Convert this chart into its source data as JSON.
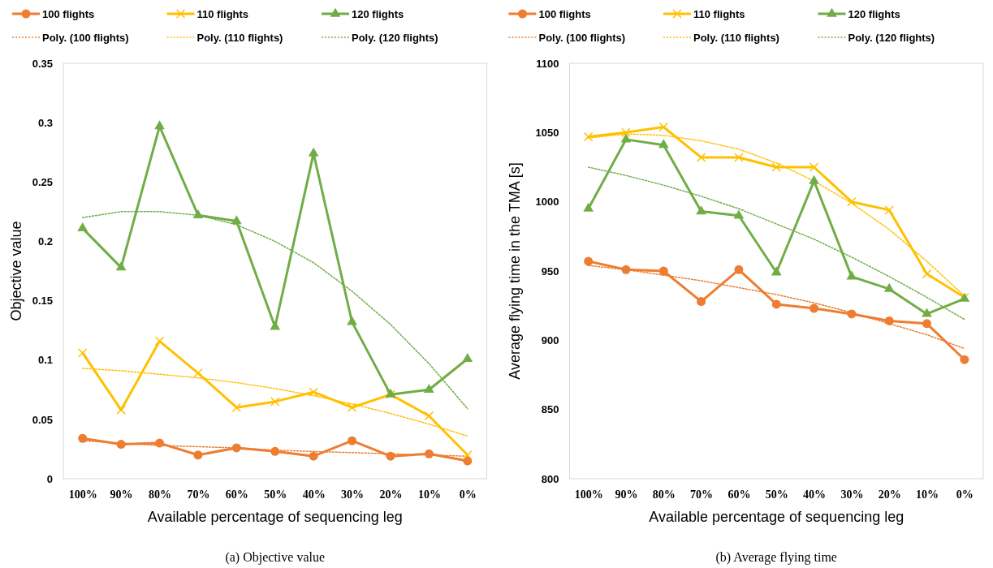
{
  "chart_data": [
    {
      "type": "line",
      "xlabel": "Available percentage of sequencing leg",
      "ylabel": "Objective value",
      "categories": [
        "100%",
        "90%",
        "80%",
        "70%",
        "60%",
        "50%",
        "40%",
        "30%",
        "20%",
        "10%",
        "0%"
      ],
      "ylim": [
        0,
        0.35
      ],
      "yticks": [
        0,
        0.05,
        0.1,
        0.15,
        0.2,
        0.25,
        0.3,
        0.35
      ],
      "legend": "top",
      "grid": false,
      "annotations": [
        "(a) Objective value"
      ],
      "series": [
        {
          "name": "100 flights",
          "color": "#ed7d31",
          "marker": "circle",
          "line_style": "solid",
          "values": [
            0.034,
            0.029,
            0.03,
            0.02,
            0.026,
            0.023,
            0.019,
            0.032,
            0.019,
            0.021,
            0.015
          ]
        },
        {
          "name": "110 flights",
          "color": "#ffc000",
          "marker": "cross",
          "line_style": "solid",
          "values": [
            0.106,
            0.058,
            0.116,
            0.089,
            0.06,
            0.065,
            0.073,
            0.06,
            0.071,
            0.053,
            0.02
          ]
        },
        {
          "name": "120 flights",
          "color": "#70ad47",
          "marker": "triangle",
          "line_style": "solid",
          "values": [
            0.211,
            0.178,
            0.297,
            0.222,
            0.217,
            0.128,
            0.274,
            0.132,
            0.071,
            0.075,
            0.101
          ]
        },
        {
          "name": "Poly.  (100 flights)",
          "color": "#ed7d31",
          "marker": "none",
          "line_style": "dotted",
          "values": [
            0.032,
            0.03,
            0.028,
            0.027,
            0.026,
            0.024,
            0.023,
            0.022,
            0.021,
            0.02,
            0.019
          ]
        },
        {
          "name": "Poly.  (110 flights)",
          "color": "#ffc000",
          "marker": "none",
          "line_style": "dotted",
          "values": [
            0.093,
            0.091,
            0.088,
            0.085,
            0.081,
            0.076,
            0.07,
            0.063,
            0.055,
            0.046,
            0.036
          ]
        },
        {
          "name": "Poly.  (120 flights)",
          "color": "#70ad47",
          "marker": "none",
          "line_style": "dotted",
          "values": [
            0.22,
            0.225,
            0.225,
            0.222,
            0.214,
            0.2,
            0.182,
            0.158,
            0.13,
            0.097,
            0.059
          ]
        }
      ]
    },
    {
      "type": "line",
      "xlabel": "Available percentage of sequencing leg",
      "ylabel": "Average flying time in the TMA [s]",
      "categories": [
        "100%",
        "90%",
        "80%",
        "70%",
        "60%",
        "50%",
        "40%",
        "30%",
        "20%",
        "10%",
        "0%"
      ],
      "ylim": [
        800,
        1100
      ],
      "yticks": [
        800,
        850,
        900,
        950,
        1000,
        1050,
        1100
      ],
      "legend": "top",
      "grid": false,
      "annotations": [
        "(b) Average flying time"
      ],
      "series": [
        {
          "name": "100 flights",
          "color": "#ed7d31",
          "marker": "circle",
          "line_style": "solid",
          "values": [
            957,
            951,
            950,
            928,
            951,
            926,
            923,
            919,
            914,
            912,
            886
          ]
        },
        {
          "name": "110 flights",
          "color": "#ffc000",
          "marker": "cross",
          "line_style": "solid",
          "values": [
            1047,
            1050,
            1054,
            1032,
            1032,
            1025,
            1025,
            1000,
            994,
            948,
            931
          ]
        },
        {
          "name": "120 flights",
          "color": "#70ad47",
          "marker": "triangle",
          "line_style": "solid",
          "values": [
            995,
            1045,
            1041,
            993,
            990,
            949,
            1015,
            946,
            937,
            919,
            930
          ]
        },
        {
          "name": "Poly.  (100 flights)",
          "color": "#ed7d31",
          "marker": "none",
          "line_style": "dotted",
          "values": [
            954,
            951,
            947,
            943,
            938,
            933,
            927,
            920,
            912,
            904,
            894
          ]
        },
        {
          "name": "Poly.  (110 flights)",
          "color": "#ffc000",
          "marker": "none",
          "line_style": "dotted",
          "values": [
            1046,
            1049,
            1048,
            1044,
            1038,
            1028,
            1015,
            999,
            980,
            957,
            932
          ]
        },
        {
          "name": "Poly.  (120 flights)",
          "color": "#70ad47",
          "marker": "none",
          "line_style": "dotted",
          "values": [
            1025,
            1019,
            1012,
            1004,
            995,
            984,
            973,
            960,
            946,
            931,
            915
          ]
        }
      ]
    }
  ]
}
